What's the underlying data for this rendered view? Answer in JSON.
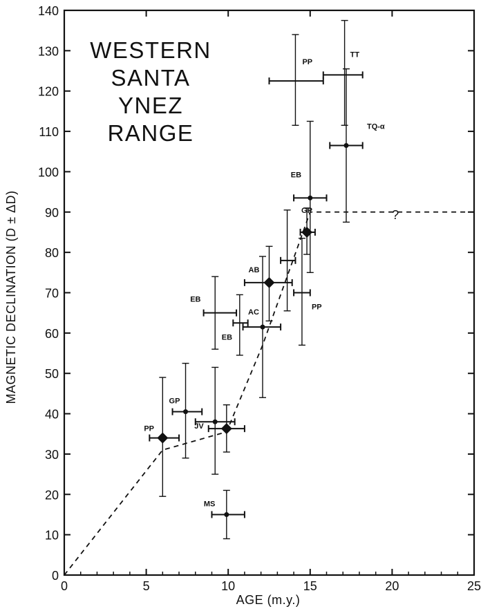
{
  "chart_data": {
    "type": "scatter",
    "title_lines": [
      "WESTERN",
      "SANTA",
      "YNEZ",
      "RANGE"
    ],
    "xlabel": "AGE (m.y.)",
    "ylabel": "MAGNETIC DECLINATION (D ± ΔD)",
    "xlim": [
      0,
      25
    ],
    "ylim": [
      0,
      140
    ],
    "x_ticks": [
      "0",
      "5",
      "10",
      "15",
      "20",
      "25"
    ],
    "y_ticks": [
      "0",
      "10",
      "20",
      "30",
      "40",
      "50",
      "60",
      "70",
      "80",
      "90",
      "100",
      "110",
      "120",
      "130",
      "140"
    ],
    "grid": false,
    "points": [
      {
        "label": "PP",
        "x": 6.0,
        "y": 34,
        "xerr": [
          5.2,
          7.0
        ],
        "yerr": [
          19.5,
          49
        ],
        "marker": "large"
      },
      {
        "label": "GP",
        "x": 7.4,
        "y": 40.5,
        "xerr": [
          6.6,
          8.4
        ],
        "yerr": [
          29,
          52.5
        ],
        "marker": "dot"
      },
      {
        "label": "JV",
        "x": 9.2,
        "y": 38,
        "xerr": [
          8.0,
          10.4
        ],
        "yerr": [
          25,
          51.5
        ],
        "marker": "dot"
      },
      {
        "label": "",
        "x": 9.9,
        "y": 36.3,
        "xerr": [
          8.8,
          11.0
        ],
        "yerr": [
          30.5,
          42.2
        ],
        "marker": "large"
      },
      {
        "label": "MS",
        "x": 9.9,
        "y": 15,
        "xerr": [
          9.0,
          11.0
        ],
        "yerr": [
          9,
          21
        ],
        "marker": "dot"
      },
      {
        "label": "EB",
        "x": 9.2,
        "y": 65,
        "xerr": [
          8.5,
          10.5
        ],
        "yerr": [
          56,
          74
        ],
        "marker": "none"
      },
      {
        "label": "EB",
        "x": 10.7,
        "y": 62.5,
        "xerr": [
          10.3,
          11.2
        ],
        "yerr": [
          54.5,
          69.5
        ],
        "marker": "none"
      },
      {
        "label": "AC",
        "x": 12.1,
        "y": 61.5,
        "xerr": [
          10.9,
          13.2
        ],
        "yerr": [
          44,
          79
        ],
        "marker": "dot"
      },
      {
        "label": "AB",
        "x": 12.5,
        "y": 72.5,
        "xerr": [
          11.0,
          13.9
        ],
        "yerr": [
          63,
          81.5
        ],
        "marker": "large"
      },
      {
        "label": "",
        "x": 13.6,
        "y": 78,
        "xerr": [
          13.2,
          14.1
        ],
        "yerr": [
          65.5,
          90.5
        ],
        "marker": "none"
      },
      {
        "label": "PP",
        "x": 14.5,
        "y": 70,
        "xerr": [
          14.0,
          15.0
        ],
        "yerr": [
          57,
          83.5
        ],
        "marker": "none"
      },
      {
        "label": "GP",
        "x": 14.8,
        "y": 85,
        "xerr": [
          14.4,
          15.3
        ],
        "yerr": [
          79.5,
          91
        ],
        "marker": "large"
      },
      {
        "label": "EB",
        "x": 15.0,
        "y": 93.5,
        "xerr": [
          14.0,
          16.0
        ],
        "yerr": [
          75,
          112.5
        ],
        "marker": "dot"
      },
      {
        "label": "PP",
        "x": 14.1,
        "y": 122.5,
        "xerr": [
          12.5,
          15.8
        ],
        "yerr": [
          111.5,
          134
        ],
        "marker": "none"
      },
      {
        "label": "TT",
        "x": 17.1,
        "y": 124,
        "xerr": [
          15.8,
          18.2
        ],
        "yerr": [
          111.5,
          137.5
        ],
        "marker": "none"
      },
      {
        "label": "TQ-α",
        "x": 17.2,
        "y": 106.5,
        "xerr": [
          16.2,
          18.2
        ],
        "yerr": [
          87.5,
          125.5
        ],
        "marker": "dot"
      }
    ],
    "trend_line": {
      "style": "dashed",
      "x": [
        0,
        6.0,
        9.9,
        12.1,
        15.0,
        25
      ],
      "y": [
        0,
        31,
        35.5,
        57,
        90,
        90
      ]
    },
    "annotations": [
      {
        "text": "?",
        "x": 20.2,
        "y": 90
      }
    ]
  }
}
